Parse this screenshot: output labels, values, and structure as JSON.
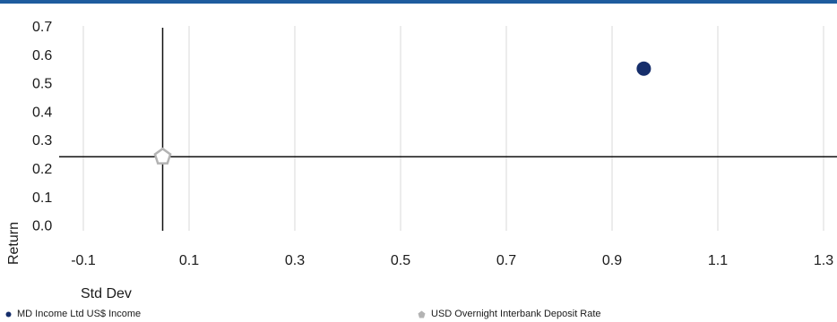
{
  "chart_data": {
    "type": "scatter",
    "xlabel": "Std Dev",
    "ylabel": "Return",
    "xlim": [
      -0.1,
      1.3
    ],
    "ylim": [
      -0.02,
      0.7
    ],
    "x_ticks": [
      "-0.1",
      "0.1",
      "0.3",
      "0.5",
      "0.7",
      "0.9",
      "1.1",
      "1.3"
    ],
    "y_ticks": [
      "0.0",
      "0.1",
      "0.2",
      "0.3",
      "0.4",
      "0.5",
      "0.6",
      "0.7"
    ],
    "grid": "vertical",
    "legend_position": "bottom",
    "series": [
      {
        "name": "MD Income Ltd US$ Income",
        "marker": "circle",
        "color": "#162e6b",
        "x": 0.96,
        "y": 0.55
      },
      {
        "name": "USD Overnight Interbank Deposit Rate",
        "marker": "pentagon",
        "color": "#b3b3b3",
        "x": 0.05,
        "y": 0.24
      }
    ],
    "reference_lines": {
      "x": 0.05,
      "y": 0.24
    }
  }
}
